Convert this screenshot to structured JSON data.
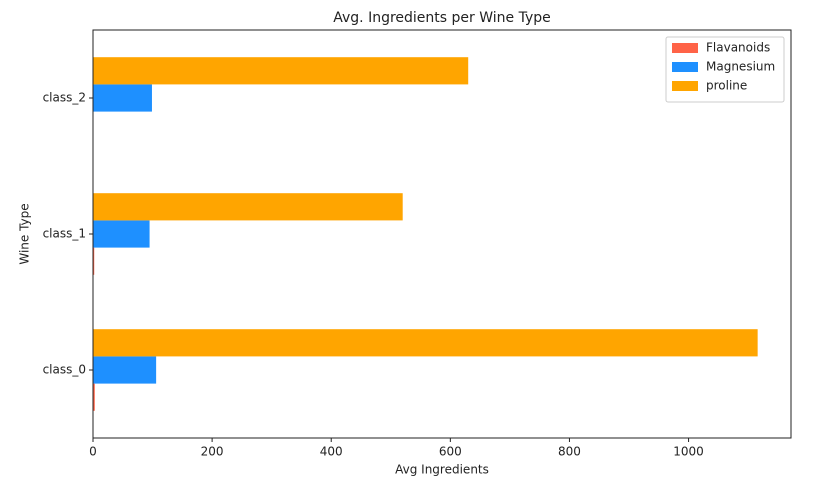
{
  "chart_data": {
    "type": "bar",
    "orientation": "horizontal",
    "title": "Avg. Ingredients per Wine Type",
    "x_label": "Avg Ingredients",
    "y_label": "Wine Type",
    "categories": [
      "class_0",
      "class_1",
      "class_2"
    ],
    "series": [
      {
        "name": "Flavanoids",
        "color": "#ff6347",
        "values": [
          2.98,
          2.08,
          0.78
        ]
      },
      {
        "name": "Magnesium",
        "color": "#1e90ff",
        "values": [
          106,
          95,
          99
        ]
      },
      {
        "name": "proline",
        "color": "#ffa500",
        "values": [
          1116,
          520,
          630
        ]
      }
    ],
    "xlim": [
      0,
      1172
    ],
    "xticks": [
      0,
      200,
      400,
      600,
      800,
      1000
    ],
    "legend": "upper right",
    "grid": false
  }
}
